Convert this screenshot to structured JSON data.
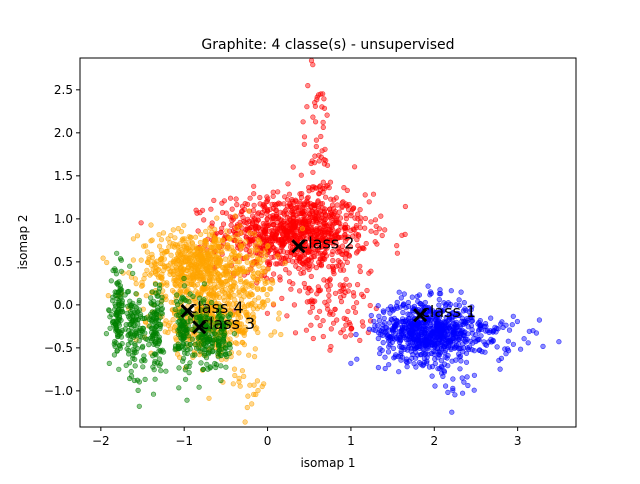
{
  "chart_data": {
    "type": "scatter",
    "title": "Graphite: 4 classe(s) - unsupervised",
    "xlabel": "isomap 1",
    "ylabel": "isomap 2",
    "xlim": [
      -2.25,
      3.7
    ],
    "ylim": [
      -1.42,
      2.87
    ],
    "xticks": [
      -2,
      -1,
      0,
      1,
      2,
      3
    ],
    "yticks": [
      -1.0,
      -0.5,
      0.0,
      0.5,
      1.0,
      1.5,
      2.0,
      2.5
    ],
    "xtick_labels": [
      "−2",
      "−1",
      "0",
      "1",
      "2",
      "3"
    ],
    "ytick_labels": [
      "−1.0",
      "−0.5",
      "0.0",
      "0.5",
      "1.0",
      "1.5",
      "2.0",
      "2.5"
    ],
    "grid": false,
    "series": [
      {
        "color": "#ff0000",
        "clusters": [
          {
            "cx": 0.3,
            "cy": 0.85,
            "sx": 0.45,
            "sy": 0.22,
            "n": 900
          },
          {
            "cx": 0.55,
            "cy": 0.45,
            "sx": 0.3,
            "sy": 0.35,
            "n": 120
          },
          {
            "cx": 0.6,
            "cy": 1.7,
            "sx": 0.12,
            "sy": 0.55,
            "n": 70
          },
          {
            "cx": 0.9,
            "cy": -0.1,
            "sx": 0.25,
            "sy": 0.2,
            "n": 60
          }
        ]
      },
      {
        "color": "#0000ff",
        "clusters": [
          {
            "cx": 1.9,
            "cy": -0.3,
            "sx": 0.28,
            "sy": 0.18,
            "n": 700
          },
          {
            "cx": 2.4,
            "cy": -0.35,
            "sx": 0.3,
            "sy": 0.15,
            "n": 120
          },
          {
            "cx": 2.2,
            "cy": -0.9,
            "sx": 0.12,
            "sy": 0.12,
            "n": 20
          },
          {
            "cx": 3.0,
            "cy": -0.45,
            "sx": 0.25,
            "sy": 0.07,
            "n": 15
          }
        ]
      },
      {
        "color": "#ffa500",
        "clusters": [
          {
            "cx": -0.85,
            "cy": 0.45,
            "sx": 0.35,
            "sy": 0.2,
            "n": 600
          },
          {
            "cx": -0.7,
            "cy": -0.2,
            "sx": 0.35,
            "sy": 0.2,
            "n": 350
          },
          {
            "cx": -0.3,
            "cy": 0.2,
            "sx": 0.2,
            "sy": 0.3,
            "n": 150
          },
          {
            "cx": -0.3,
            "cy": -0.95,
            "sx": 0.15,
            "sy": 0.12,
            "n": 20
          }
        ]
      },
      {
        "color": "#008000",
        "clusters": [
          {
            "cx": -1.8,
            "cy": -0.1,
            "sx": 0.04,
            "sy": 0.25,
            "n": 110
          },
          {
            "cx": -1.6,
            "cy": -0.3,
            "sx": 0.06,
            "sy": 0.25,
            "n": 110
          },
          {
            "cx": -1.35,
            "cy": -0.25,
            "sx": 0.05,
            "sy": 0.25,
            "n": 110
          },
          {
            "cx": -1.0,
            "cy": -0.3,
            "sx": 0.05,
            "sy": 0.25,
            "n": 110
          },
          {
            "cx": -0.75,
            "cy": -0.35,
            "sx": 0.05,
            "sy": 0.22,
            "n": 110
          },
          {
            "cx": -0.55,
            "cy": -0.4,
            "sx": 0.05,
            "sy": 0.18,
            "n": 80
          }
        ]
      }
    ],
    "centroids": [
      {
        "label": "class 1",
        "x": 1.83,
        "y": -0.12
      },
      {
        "label": "class 2",
        "x": 0.37,
        "y": 0.68
      },
      {
        "label": "class 3",
        "x": -0.82,
        "y": -0.26
      },
      {
        "label": "class 4",
        "x": -0.96,
        "y": -0.07
      }
    ]
  }
}
